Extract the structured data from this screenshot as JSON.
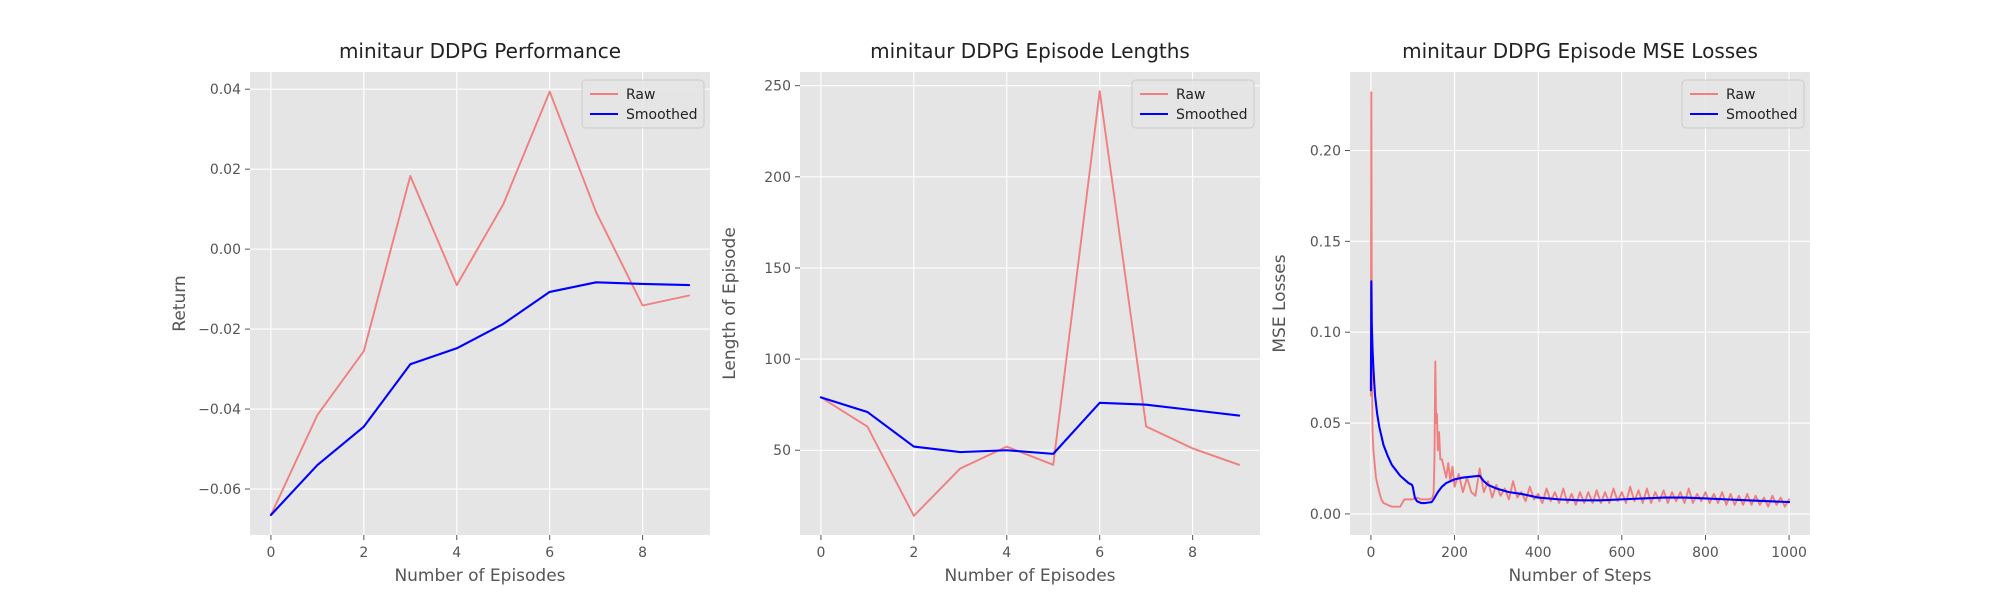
{
  "chart_data": [
    {
      "type": "line",
      "title": "minitaur DDPG Performance",
      "xlabel": "Number of Episodes",
      "ylabel": "Return",
      "xlim": [
        -0.45,
        9.45
      ],
      "ylim": [
        -0.0715,
        0.0443
      ],
      "xticks": [
        0,
        2,
        4,
        6,
        8
      ],
      "yticks": [
        -0.06,
        -0.04,
        -0.02,
        0.0,
        0.02,
        0.04
      ],
      "xtick_labels": [
        "0",
        "2",
        "4",
        "6",
        "8"
      ],
      "ytick_labels": [
        "−0.06",
        "−0.04",
        "−0.02",
        "0.00",
        "0.02",
        "0.04"
      ],
      "grid": true,
      "legend_position": "top-right",
      "series": [
        {
          "name": "Raw",
          "color": "#f08080",
          "x": [
            0,
            1,
            2,
            3,
            4,
            5,
            6,
            7,
            8,
            9
          ],
          "y": [
            -0.0665,
            -0.0415,
            -0.0255,
            0.0183,
            -0.009,
            0.0112,
            0.0394,
            0.0092,
            -0.0141,
            -0.0116
          ]
        },
        {
          "name": "Smoothed",
          "color": "#0000ff",
          "x": [
            0,
            1,
            2,
            3,
            4,
            5,
            6,
            7,
            8,
            9
          ],
          "y": [
            -0.0665,
            -0.054,
            -0.0444,
            -0.0288,
            -0.0248,
            -0.0187,
            -0.0107,
            -0.0083,
            -0.0087,
            -0.009
          ]
        }
      ]
    },
    {
      "type": "line",
      "title": "minitaur DDPG Episode Lengths",
      "xlabel": "Number of Episodes",
      "ylabel": "Length of Episode",
      "xlim": [
        -0.45,
        9.45
      ],
      "ylim": [
        3.5,
        257.5
      ],
      "xticks": [
        0,
        2,
        4,
        6,
        8
      ],
      "yticks": [
        50,
        100,
        150,
        200,
        250
      ],
      "xtick_labels": [
        "0",
        "2",
        "4",
        "6",
        "8"
      ],
      "ytick_labels": [
        "50",
        "100",
        "150",
        "200",
        "250"
      ],
      "grid": true,
      "legend_position": "top-right",
      "series": [
        {
          "name": "Raw",
          "color": "#f08080",
          "x": [
            0,
            1,
            2,
            3,
            4,
            5,
            6,
            7,
            8,
            9
          ],
          "y": [
            79,
            63,
            14,
            40,
            52,
            42,
            247,
            63,
            51,
            42
          ]
        },
        {
          "name": "Smoothed",
          "color": "#0000ff",
          "x": [
            0,
            1,
            2,
            3,
            4,
            5,
            6,
            7,
            8,
            9
          ],
          "y": [
            79,
            71,
            52,
            49,
            50,
            48,
            76,
            75,
            72,
            69
          ]
        }
      ]
    },
    {
      "type": "line",
      "title": "minitaur DDPG Episode MSE Losses",
      "xlabel": "Number of Steps",
      "ylabel": "MSE Losses",
      "xlim": [
        -50,
        1050
      ],
      "ylim": [
        -0.0116,
        0.2432
      ],
      "xticks": [
        0,
        200,
        400,
        600,
        800,
        1000
      ],
      "yticks": [
        0.0,
        0.05,
        0.1,
        0.15,
        0.2
      ],
      "xtick_labels": [
        "0",
        "200",
        "400",
        "600",
        "800",
        "1000"
      ],
      "ytick_labels": [
        "0.00",
        "0.05",
        "0.10",
        "0.15",
        "0.20"
      ],
      "grid": true,
      "legend_position": "top-right",
      "series": [
        {
          "name": "Raw",
          "color": "#f08080",
          "x": [
            0,
            1,
            2,
            3,
            4,
            6,
            8,
            10,
            12,
            14,
            16,
            18,
            20,
            25,
            30,
            40,
            50,
            60,
            70,
            80,
            90,
            100,
            110,
            120,
            130,
            140,
            148,
            150,
            152,
            154,
            156,
            158,
            160,
            163,
            166,
            170,
            175,
            180,
            185,
            190,
            195,
            200,
            210,
            220,
            230,
            240,
            250,
            260,
            270,
            280,
            290,
            300,
            310,
            320,
            330,
            340,
            350,
            360,
            370,
            380,
            390,
            400,
            410,
            420,
            430,
            440,
            450,
            460,
            470,
            480,
            490,
            500,
            510,
            520,
            530,
            540,
            550,
            560,
            570,
            580,
            590,
            600,
            610,
            620,
            630,
            640,
            650,
            660,
            670,
            680,
            690,
            700,
            710,
            720,
            730,
            740,
            750,
            760,
            770,
            780,
            790,
            800,
            810,
            820,
            830,
            840,
            850,
            860,
            870,
            880,
            890,
            900,
            910,
            920,
            930,
            940,
            950,
            960,
            970,
            980,
            990,
            1000
          ],
          "y": [
            0.065,
            0.232,
            0.12,
            0.06,
            0.045,
            0.035,
            0.03,
            0.025,
            0.02,
            0.018,
            0.016,
            0.014,
            0.012,
            0.008,
            0.006,
            0.005,
            0.004,
            0.004,
            0.004,
            0.008,
            0.008,
            0.008,
            0.009,
            0.008,
            0.008,
            0.008,
            0.009,
            0.012,
            0.03,
            0.084,
            0.05,
            0.055,
            0.035,
            0.045,
            0.03,
            0.03,
            0.025,
            0.02,
            0.028,
            0.018,
            0.026,
            0.015,
            0.022,
            0.012,
            0.02,
            0.012,
            0.01,
            0.025,
            0.012,
            0.018,
            0.009,
            0.016,
            0.01,
            0.014,
            0.008,
            0.018,
            0.009,
            0.012,
            0.007,
            0.015,
            0.008,
            0.011,
            0.006,
            0.014,
            0.007,
            0.012,
            0.006,
            0.014,
            0.006,
            0.011,
            0.005,
            0.012,
            0.006,
            0.012,
            0.006,
            0.013,
            0.006,
            0.012,
            0.006,
            0.014,
            0.007,
            0.012,
            0.006,
            0.015,
            0.007,
            0.013,
            0.006,
            0.014,
            0.006,
            0.012,
            0.007,
            0.013,
            0.006,
            0.012,
            0.007,
            0.012,
            0.006,
            0.014,
            0.006,
            0.011,
            0.007,
            0.012,
            0.006,
            0.011,
            0.006,
            0.012,
            0.005,
            0.011,
            0.005,
            0.01,
            0.005,
            0.011,
            0.005,
            0.01,
            0.005,
            0.009,
            0.004,
            0.01,
            0.005,
            0.009,
            0.004,
            0.008
          ]
        },
        {
          "name": "Smoothed",
          "color": "#0000ff",
          "x": [
            0,
            1,
            2,
            4,
            6,
            8,
            10,
            15,
            20,
            25,
            30,
            40,
            50,
            60,
            70,
            80,
            90,
            98,
            100,
            105,
            110,
            120,
            130,
            145,
            150,
            155,
            160,
            170,
            180,
            200,
            220,
            240,
            260,
            270,
            280,
            300,
            330,
            360,
            400,
            450,
            500,
            550,
            600,
            650,
            700,
            750,
            800,
            850,
            900,
            950,
            1000
          ],
          "y": [
            0.068,
            0.128,
            0.105,
            0.09,
            0.08,
            0.072,
            0.065,
            0.055,
            0.048,
            0.043,
            0.038,
            0.032,
            0.027,
            0.024,
            0.021,
            0.019,
            0.017,
            0.016,
            0.015,
            0.009,
            0.007,
            0.006,
            0.006,
            0.0065,
            0.008,
            0.01,
            0.012,
            0.015,
            0.017,
            0.019,
            0.02,
            0.0205,
            0.021,
            0.018,
            0.016,
            0.014,
            0.012,
            0.011,
            0.009,
            0.008,
            0.0075,
            0.0075,
            0.008,
            0.0085,
            0.009,
            0.009,
            0.0085,
            0.008,
            0.0075,
            0.007,
            0.0065
          ]
        }
      ]
    }
  ]
}
